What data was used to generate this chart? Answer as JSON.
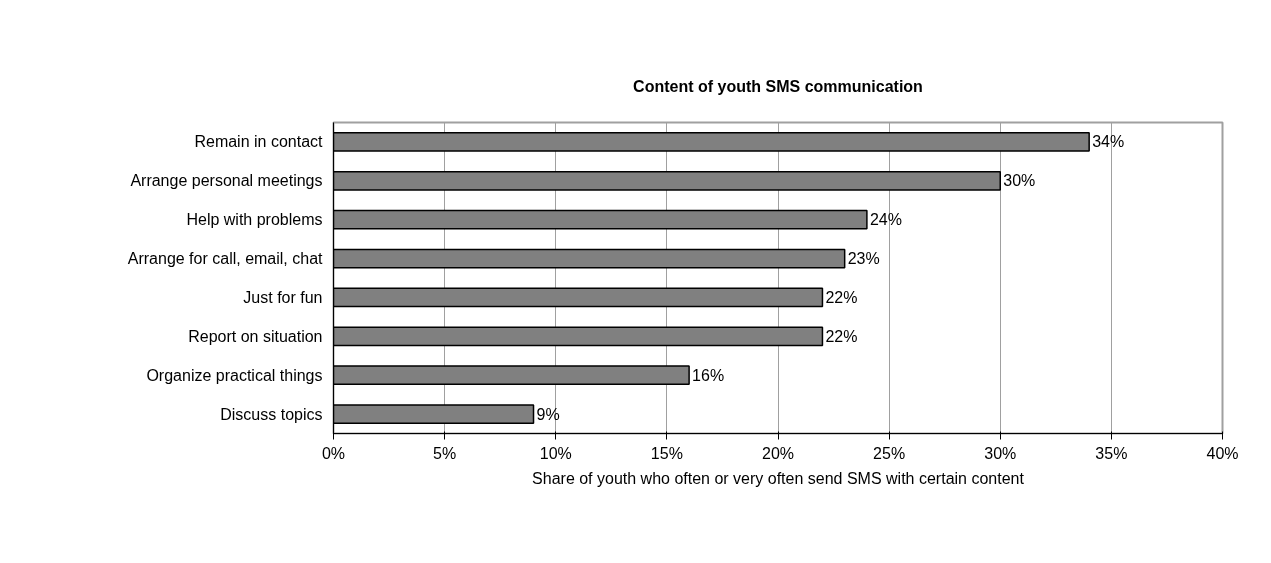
{
  "chart_data": {
    "type": "bar",
    "orientation": "horizontal",
    "title": "Content of youth SMS communication",
    "xlabel": "Share of youth who often or very often send SMS with certain content",
    "categories": [
      "Remain in contact",
      "Arrange personal meetings",
      "Help with problems",
      "Arrange for call, email, chat",
      "Just for fun",
      "Report on situation",
      "Organize practical things",
      "Discuss topics"
    ],
    "values": [
      34,
      30,
      24,
      23,
      22,
      22,
      16,
      9
    ],
    "value_labels": [
      "34%",
      "30%",
      "24%",
      "23%",
      "22%",
      "22%",
      "16%",
      "9%"
    ],
    "color": "#808080",
    "xlim": [
      0,
      40
    ],
    "xticks": [
      {
        "value": 0,
        "label": "0%"
      },
      {
        "value": 5,
        "label": "5%"
      },
      {
        "value": 10,
        "label": "10%"
      },
      {
        "value": 15,
        "label": "15%"
      },
      {
        "value": 20,
        "label": "20%"
      },
      {
        "value": 25,
        "label": "25%"
      },
      {
        "value": 30,
        "label": "30%"
      },
      {
        "value": 35,
        "label": "35%"
      },
      {
        "value": 40,
        "label": "40%"
      }
    ],
    "grid": "x"
  }
}
